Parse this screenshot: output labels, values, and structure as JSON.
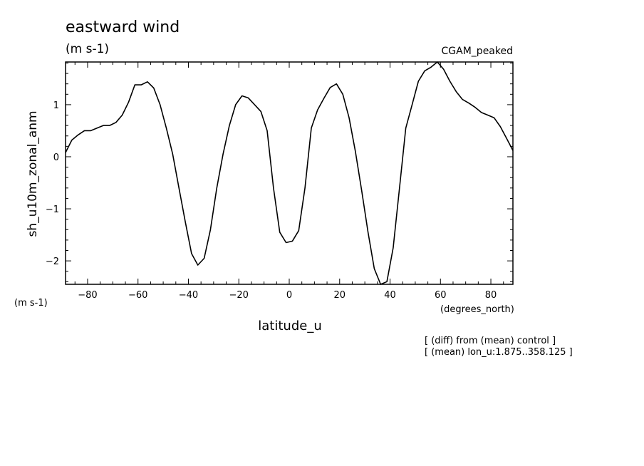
{
  "chart_data": {
    "type": "line",
    "title": "eastward wind",
    "title_units": "(m s-1)",
    "experiment": "CGAM_peaked",
    "ylabel": "sh_u10m_zonal_anm",
    "y_units": "(m s-1)",
    "xlabel": "latitude_u",
    "x_units": "(degrees_north)",
    "notes": [
      "[ (diff) from (mean) control ]",
      "[ (mean) lon_u:1.875..358.125 ]"
    ],
    "xlim": [
      -88.75,
      88.75
    ],
    "ylim": [
      -2.45,
      1.82
    ],
    "xticks": [
      -80,
      -60,
      -40,
      -20,
      0,
      20,
      40,
      60,
      80
    ],
    "xtick_labels": [
      "−80",
      "−60",
      "−40",
      "−20",
      "0",
      "20",
      "40",
      "60",
      "80"
    ],
    "yticks": [
      -2,
      -1,
      0,
      1
    ],
    "ytick_labels": [
      "−2",
      "−1",
      "0",
      "1"
    ],
    "grid": false,
    "line_color": "#000000",
    "series": [
      {
        "x": [
          -88.75,
          -86.25,
          -83.75,
          -81.25,
          -78.75,
          -76.25,
          -73.75,
          -71.25,
          -68.75,
          -66.25,
          -63.75,
          -61.25,
          -58.75,
          -56.25,
          -53.75,
          -51.25,
          -48.75,
          -46.25,
          -43.75,
          -41.25,
          -38.75,
          -36.25,
          -33.75,
          -31.25,
          -28.75,
          -26.25,
          -23.75,
          -21.25,
          -18.75,
          -16.25,
          -13.75,
          -11.25,
          -8.75,
          -6.25,
          -3.75,
          -1.25,
          1.25,
          3.75,
          6.25,
          8.75,
          11.25,
          13.75,
          16.25,
          18.75,
          21.25,
          23.75,
          26.25,
          28.75,
          31.25,
          33.75,
          36.25,
          38.75,
          41.25,
          43.75,
          46.25,
          48.75,
          51.25,
          53.75,
          56.25,
          58.75,
          61.25,
          63.75,
          66.25,
          68.75,
          71.25,
          73.75,
          76.25,
          78.75,
          81.25,
          83.75,
          86.25,
          88.75
        ],
        "y": [
          0.08,
          0.32,
          0.42,
          0.5,
          0.5,
          0.55,
          0.6,
          0.6,
          0.66,
          0.8,
          1.05,
          1.38,
          1.38,
          1.44,
          1.32,
          1.0,
          0.55,
          0.05,
          -0.6,
          -1.25,
          -1.86,
          -2.08,
          -1.95,
          -1.4,
          -0.6,
          0.05,
          0.6,
          1.0,
          1.17,
          1.13,
          1.0,
          0.87,
          0.5,
          -0.6,
          -1.45,
          -1.65,
          -1.62,
          -1.42,
          -0.6,
          0.55,
          0.9,
          1.12,
          1.33,
          1.4,
          1.2,
          0.75,
          0.1,
          -0.65,
          -1.45,
          -2.15,
          -2.45,
          -2.4,
          -1.75,
          -0.6,
          0.55,
          1.0,
          1.45,
          1.65,
          1.72,
          1.82,
          1.68,
          1.45,
          1.25,
          1.1,
          1.03,
          0.95,
          0.85,
          0.8,
          0.75,
          0.58,
          0.35,
          0.12
        ]
      }
    ]
  }
}
